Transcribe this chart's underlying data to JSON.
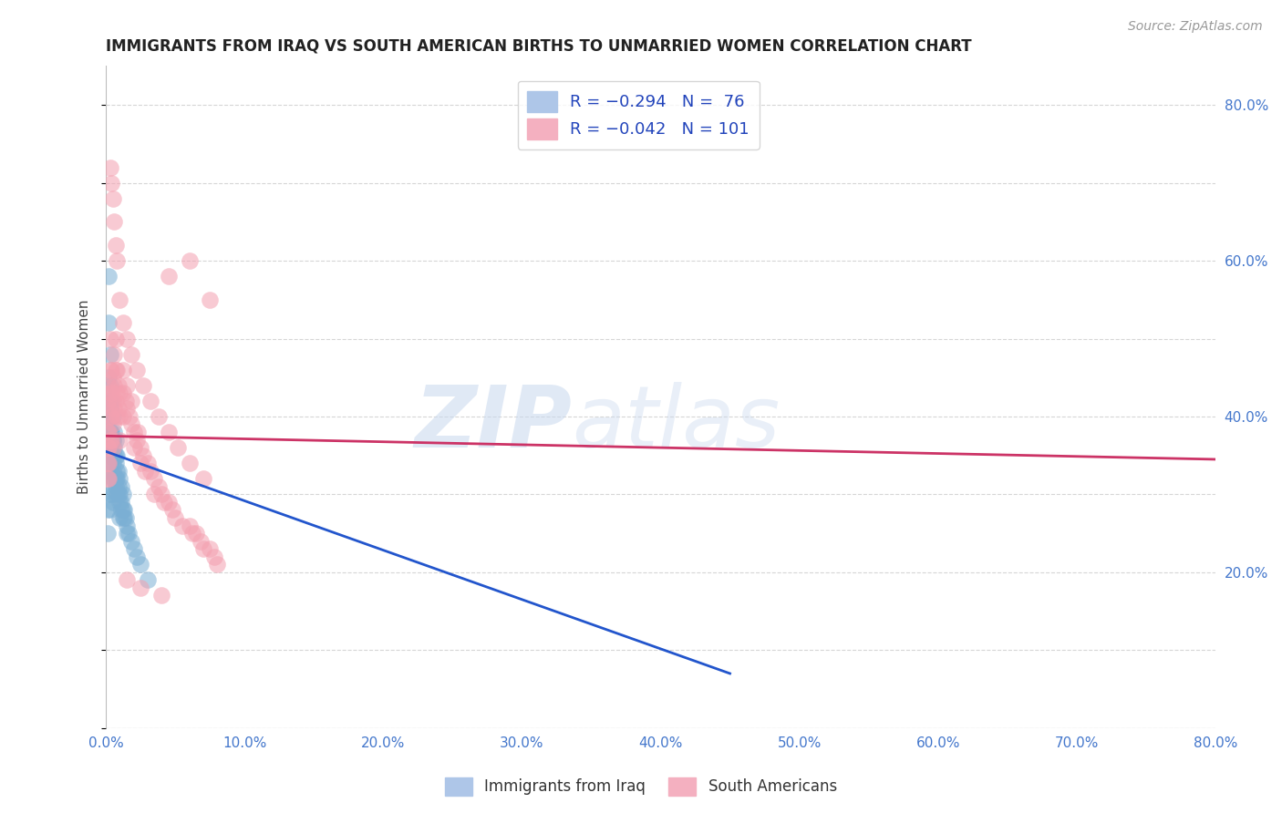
{
  "title": "IMMIGRANTS FROM IRAQ VS SOUTH AMERICAN BIRTHS TO UNMARRIED WOMEN CORRELATION CHART",
  "source": "Source: ZipAtlas.com",
  "ylabel": "Births to Unmarried Women",
  "iraq_color": "#7bafd4",
  "south_color": "#f4a0b0",
  "iraq_line_color": "#2255cc",
  "south_line_color": "#cc3366",
  "background": "#ffffff",
  "grid_color": "#cccccc",
  "iraq_x": [
    0.001,
    0.001,
    0.001,
    0.002,
    0.002,
    0.002,
    0.002,
    0.002,
    0.002,
    0.003,
    0.003,
    0.003,
    0.003,
    0.003,
    0.003,
    0.003,
    0.003,
    0.004,
    0.004,
    0.004,
    0.004,
    0.004,
    0.004,
    0.005,
    0.005,
    0.005,
    0.005,
    0.005,
    0.006,
    0.006,
    0.006,
    0.006,
    0.007,
    0.007,
    0.007,
    0.008,
    0.008,
    0.008,
    0.009,
    0.009,
    0.01,
    0.01,
    0.01,
    0.011,
    0.011,
    0.012,
    0.012,
    0.013,
    0.014,
    0.015,
    0.016,
    0.018,
    0.02,
    0.022,
    0.025,
    0.03,
    0.001,
    0.002,
    0.002,
    0.003,
    0.003,
    0.003,
    0.004,
    0.004,
    0.005,
    0.005,
    0.006,
    0.007,
    0.007,
    0.008,
    0.009,
    0.01,
    0.011,
    0.012,
    0.013,
    0.015
  ],
  "iraq_y": [
    0.33,
    0.28,
    0.25,
    0.58,
    0.52,
    0.45,
    0.42,
    0.38,
    0.35,
    0.48,
    0.44,
    0.41,
    0.38,
    0.35,
    0.33,
    0.3,
    0.28,
    0.42,
    0.4,
    0.37,
    0.35,
    0.32,
    0.3,
    0.4,
    0.37,
    0.34,
    0.32,
    0.29,
    0.38,
    0.35,
    0.32,
    0.3,
    0.37,
    0.34,
    0.31,
    0.35,
    0.32,
    0.3,
    0.33,
    0.3,
    0.32,
    0.29,
    0.27,
    0.31,
    0.28,
    0.3,
    0.27,
    0.28,
    0.27,
    0.26,
    0.25,
    0.24,
    0.23,
    0.22,
    0.21,
    0.19,
    0.36,
    0.4,
    0.36,
    0.4,
    0.38,
    0.35,
    0.38,
    0.35,
    0.37,
    0.33,
    0.36,
    0.35,
    0.32,
    0.33,
    0.31,
    0.3,
    0.29,
    0.28,
    0.27,
    0.25
  ],
  "south_x": [
    0.001,
    0.001,
    0.001,
    0.001,
    0.001,
    0.002,
    0.002,
    0.002,
    0.002,
    0.002,
    0.002,
    0.003,
    0.003,
    0.003,
    0.003,
    0.003,
    0.004,
    0.004,
    0.004,
    0.004,
    0.005,
    0.005,
    0.005,
    0.005,
    0.006,
    0.006,
    0.006,
    0.007,
    0.007,
    0.007,
    0.008,
    0.008,
    0.008,
    0.009,
    0.009,
    0.01,
    0.01,
    0.01,
    0.012,
    0.012,
    0.012,
    0.014,
    0.015,
    0.015,
    0.017,
    0.018,
    0.018,
    0.02,
    0.02,
    0.022,
    0.023,
    0.025,
    0.025,
    0.027,
    0.028,
    0.03,
    0.032,
    0.035,
    0.035,
    0.038,
    0.04,
    0.042,
    0.045,
    0.048,
    0.05,
    0.055,
    0.06,
    0.062,
    0.065,
    0.068,
    0.07,
    0.075,
    0.078,
    0.08,
    0.003,
    0.004,
    0.005,
    0.006,
    0.007,
    0.008,
    0.01,
    0.012,
    0.015,
    0.018,
    0.022,
    0.027,
    0.032,
    0.038,
    0.045,
    0.052,
    0.06,
    0.07,
    0.045,
    0.06,
    0.075,
    0.015,
    0.025,
    0.04
  ],
  "south_y": [
    0.42,
    0.38,
    0.36,
    0.34,
    0.32,
    0.44,
    0.41,
    0.38,
    0.36,
    0.34,
    0.32,
    0.5,
    0.46,
    0.43,
    0.4,
    0.37,
    0.46,
    0.43,
    0.4,
    0.37,
    0.45,
    0.42,
    0.39,
    0.36,
    0.48,
    0.44,
    0.41,
    0.5,
    0.46,
    0.42,
    0.46,
    0.43,
    0.4,
    0.44,
    0.41,
    0.43,
    0.4,
    0.37,
    0.46,
    0.43,
    0.4,
    0.42,
    0.44,
    0.41,
    0.4,
    0.42,
    0.39,
    0.38,
    0.36,
    0.37,
    0.38,
    0.36,
    0.34,
    0.35,
    0.33,
    0.34,
    0.33,
    0.32,
    0.3,
    0.31,
    0.3,
    0.29,
    0.29,
    0.28,
    0.27,
    0.26,
    0.26,
    0.25,
    0.25,
    0.24,
    0.23,
    0.23,
    0.22,
    0.21,
    0.72,
    0.7,
    0.68,
    0.65,
    0.62,
    0.6,
    0.55,
    0.52,
    0.5,
    0.48,
    0.46,
    0.44,
    0.42,
    0.4,
    0.38,
    0.36,
    0.34,
    0.32,
    0.58,
    0.6,
    0.55,
    0.19,
    0.18,
    0.17
  ],
  "iraq_line_x": [
    0.0,
    0.45
  ],
  "iraq_line_y": [
    0.355,
    0.07
  ],
  "south_line_x": [
    0.0,
    0.8
  ],
  "south_line_y": [
    0.375,
    0.345
  ],
  "xlim": [
    0.0,
    0.8
  ],
  "ylim": [
    0.0,
    0.85
  ],
  "xtick_vals": [
    0.0,
    0.1,
    0.2,
    0.3,
    0.4,
    0.5,
    0.6,
    0.7,
    0.8
  ],
  "ytick_vals": [
    0.2,
    0.4,
    0.6,
    0.8
  ]
}
